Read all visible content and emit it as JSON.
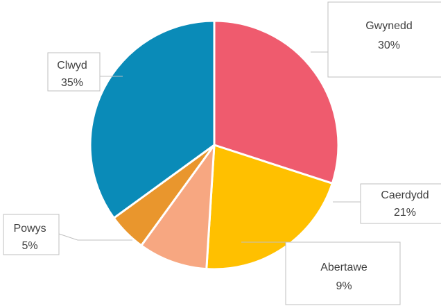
{
  "chart_data": {
    "type": "pie",
    "title": "",
    "categories": [
      "Gwynedd",
      "Caerdydd",
      "Abertawe",
      "Powys",
      "Clwyd"
    ],
    "values": [
      30,
      21,
      9,
      5,
      35
    ],
    "labels": [
      "30%",
      "21%",
      "9%",
      "5%",
      "35%"
    ],
    "colors": [
      "#EF5B6E",
      "#FFC000",
      "#F7A781",
      "#E9962D",
      "#0A8BB8"
    ],
    "start_angle_deg": 0,
    "direction": "clockwise",
    "data_labels": "callouts"
  }
}
